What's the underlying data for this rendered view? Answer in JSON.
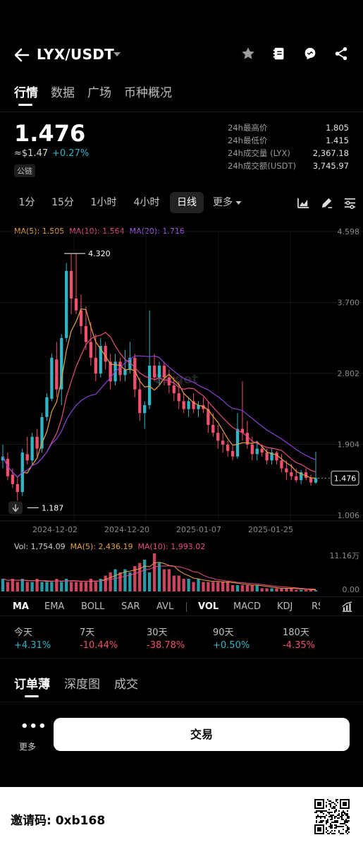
{
  "header": {
    "pair": "LYX/USDT",
    "icons": [
      "back-arrow-icon",
      "chevron-down-icon",
      "star-icon",
      "notes-icon",
      "chat-icon",
      "share-icon"
    ]
  },
  "tabs": {
    "items": [
      "行情",
      "数据",
      "广场",
      "币种概况"
    ],
    "active": "行情"
  },
  "price": {
    "last": "1.476",
    "usd": "≈$1.47",
    "change": "+0.27%",
    "chain_badge": "公链"
  },
  "stats": {
    "high_label": "24h最高价",
    "high": "1.805",
    "low_label": "24h最低价",
    "low": "1.415",
    "vol_label": "24h成交量 (LYX)",
    "vol": "2,367.18",
    "turnover_label": "24h成交额(USDT)",
    "turnover": "3,745.97"
  },
  "intervals": {
    "items": [
      "1分",
      "15分",
      "1小时",
      "4小时",
      "日线",
      "更多"
    ],
    "active": "日线"
  },
  "ma_legend": {
    "ma5": "MA(5): 1.505",
    "ma10": "MA(10): 1.564",
    "ma20": "MA(20): 1.716"
  },
  "vol_legend": {
    "vol": "Vol: 1,754.09",
    "ma5": "MA(5): 2,436.19",
    "ma10": "MA(10): 1,993.02"
  },
  "chart_data": {
    "type": "candlestick",
    "interval": "日线",
    "yticks": [
      "4.598",
      "3.700",
      "2.802",
      "1.904",
      "1.006"
    ],
    "ylim": [
      1.006,
      4.598
    ],
    "xticks": [
      "2024-12-02",
      "2024-12-20",
      "2025-01-07",
      "2025-01-25"
    ],
    "high_marker": "4.320",
    "low_marker": "1.187",
    "last_price_label": "1.476",
    "watermark": "Bitget",
    "colors": {
      "up": "#2fb6c7",
      "down": "#f0506e",
      "ma5": "#e8a33c",
      "ma10": "#e84a8a",
      "ma20": "#8c3fd6"
    },
    "candles": [
      [
        1.7,
        1.9,
        1.6,
        1.75
      ],
      [
        1.72,
        1.8,
        1.45,
        1.5
      ],
      [
        1.52,
        1.6,
        1.35,
        1.4
      ],
      [
        1.4,
        1.5,
        1.19,
        1.3
      ],
      [
        1.3,
        1.85,
        1.25,
        1.8
      ],
      [
        1.78,
        2.0,
        1.65,
        1.7
      ],
      [
        1.7,
        2.05,
        1.65,
        2.0
      ],
      [
        2.0,
        2.1,
        1.75,
        1.85
      ],
      [
        1.85,
        2.3,
        1.8,
        2.25
      ],
      [
        2.25,
        2.55,
        2.2,
        2.5
      ],
      [
        2.48,
        3.05,
        2.45,
        3.0
      ],
      [
        2.98,
        3.2,
        2.5,
        2.6
      ],
      [
        2.6,
        3.3,
        2.4,
        3.25
      ],
      [
        3.25,
        4.2,
        3.2,
        4.1
      ],
      [
        4.1,
        4.32,
        3.55,
        3.75
      ],
      [
        3.75,
        4.32,
        3.55,
        3.6
      ],
      [
        3.6,
        3.8,
        3.3,
        3.4
      ],
      [
        3.4,
        3.65,
        3.1,
        3.2
      ],
      [
        3.2,
        3.45,
        2.9,
        3.0
      ],
      [
        3.0,
        3.3,
        2.7,
        2.8
      ],
      [
        2.8,
        3.25,
        2.75,
        3.15
      ],
      [
        3.15,
        3.2,
        2.85,
        2.95
      ],
      [
        2.95,
        3.05,
        2.6,
        2.7
      ],
      [
        2.7,
        3.05,
        2.65,
        2.95
      ],
      [
        2.95,
        3.0,
        2.7,
        2.78
      ],
      [
        2.78,
        3.1,
        2.7,
        2.85
      ],
      [
        2.85,
        3.2,
        2.8,
        3.0
      ],
      [
        3.0,
        3.05,
        2.5,
        2.6
      ],
      [
        2.6,
        2.75,
        2.2,
        2.3
      ],
      [
        2.3,
        2.45,
        2.1,
        2.4
      ],
      [
        2.4,
        3.6,
        2.35,
        2.9
      ],
      [
        2.9,
        3.05,
        2.7,
        2.75
      ],
      [
        2.75,
        2.95,
        2.65,
        2.9
      ],
      [
        2.9,
        2.95,
        2.65,
        2.75
      ],
      [
        2.75,
        2.85,
        2.55,
        2.65
      ],
      [
        2.65,
        2.75,
        2.45,
        2.55
      ],
      [
        2.55,
        2.7,
        2.35,
        2.45
      ],
      [
        2.45,
        2.55,
        2.3,
        2.35
      ],
      [
        2.35,
        2.5,
        2.25,
        2.45
      ],
      [
        2.45,
        2.55,
        2.3,
        2.35
      ],
      [
        2.35,
        2.45,
        2.25,
        2.4
      ],
      [
        2.4,
        2.5,
        2.3,
        2.35
      ],
      [
        2.35,
        2.45,
        2.05,
        2.15
      ],
      [
        2.15,
        2.3,
        2.0,
        2.05
      ],
      [
        2.05,
        2.15,
        1.85,
        1.95
      ],
      [
        1.95,
        2.05,
        1.8,
        1.9
      ],
      [
        1.9,
        1.95,
        1.75,
        1.82
      ],
      [
        1.82,
        1.9,
        1.7,
        1.75
      ],
      [
        1.75,
        2.3,
        1.72,
        2.1
      ],
      [
        2.1,
        2.7,
        1.95,
        2.05
      ],
      [
        2.05,
        2.2,
        1.85,
        1.9
      ],
      [
        1.9,
        2.0,
        1.7,
        1.78
      ],
      [
        1.78,
        1.95,
        1.7,
        1.85
      ],
      [
        1.85,
        1.9,
        1.75,
        1.8
      ],
      [
        1.8,
        1.85,
        1.65,
        1.7
      ],
      [
        1.7,
        1.85,
        1.65,
        1.8
      ],
      [
        1.8,
        1.82,
        1.65,
        1.7
      ],
      [
        1.7,
        1.78,
        1.55,
        1.6
      ],
      [
        1.6,
        1.7,
        1.45,
        1.55
      ],
      [
        1.55,
        1.65,
        1.45,
        1.5
      ],
      [
        1.5,
        1.6,
        1.42,
        1.45
      ],
      [
        1.45,
        1.58,
        1.4,
        1.55
      ],
      [
        1.55,
        1.6,
        1.45,
        1.48
      ],
      [
        1.48,
        1.52,
        1.38,
        1.42
      ],
      [
        1.42,
        1.81,
        1.4,
        1.476
      ]
    ],
    "volume": {
      "ylim_label": "11.16万",
      "zero_label": "0.00",
      "values": [
        4,
        3,
        4,
        3,
        4,
        3,
        3,
        4,
        3,
        3,
        3,
        4,
        3,
        4,
        3,
        3,
        3,
        3,
        4,
        3,
        4,
        5,
        6,
        7,
        6,
        7,
        6,
        8,
        9,
        10,
        6,
        12,
        9,
        7,
        7,
        5,
        5,
        4,
        4,
        3,
        4,
        3,
        3,
        3,
        3,
        3,
        3,
        2,
        2,
        2,
        2,
        2,
        2,
        1,
        1,
        1,
        1,
        1,
        1,
        1,
        0.5,
        0.5,
        0.5,
        0.5,
        0.4
      ]
    }
  },
  "indicator_bar": {
    "items": [
      "MA",
      "EMA",
      "BOLL",
      "SAR",
      "AVL",
      "VOL",
      "MACD",
      "KDJ",
      "RSI"
    ],
    "active_main": "MA",
    "active_sub": "VOL"
  },
  "performance": [
    {
      "label": "今天",
      "value": "+4.31%",
      "dir": "up"
    },
    {
      "label": "7天",
      "value": "-10.44%",
      "dir": "down"
    },
    {
      "label": "30天",
      "value": "-38.78%",
      "dir": "down"
    },
    {
      "label": "90天",
      "value": "+0.50%",
      "dir": "up"
    },
    {
      "label": "180天",
      "value": "-4.35%",
      "dir": "down"
    }
  ],
  "orderbook_tabs": {
    "items": [
      "订单薄",
      "深度图",
      "成交"
    ],
    "active": "订单薄"
  },
  "actions": {
    "more_dots": "•••",
    "more_label": "更多",
    "trade": "交易"
  },
  "footer": {
    "invite": "邀请码: 0xb168"
  }
}
